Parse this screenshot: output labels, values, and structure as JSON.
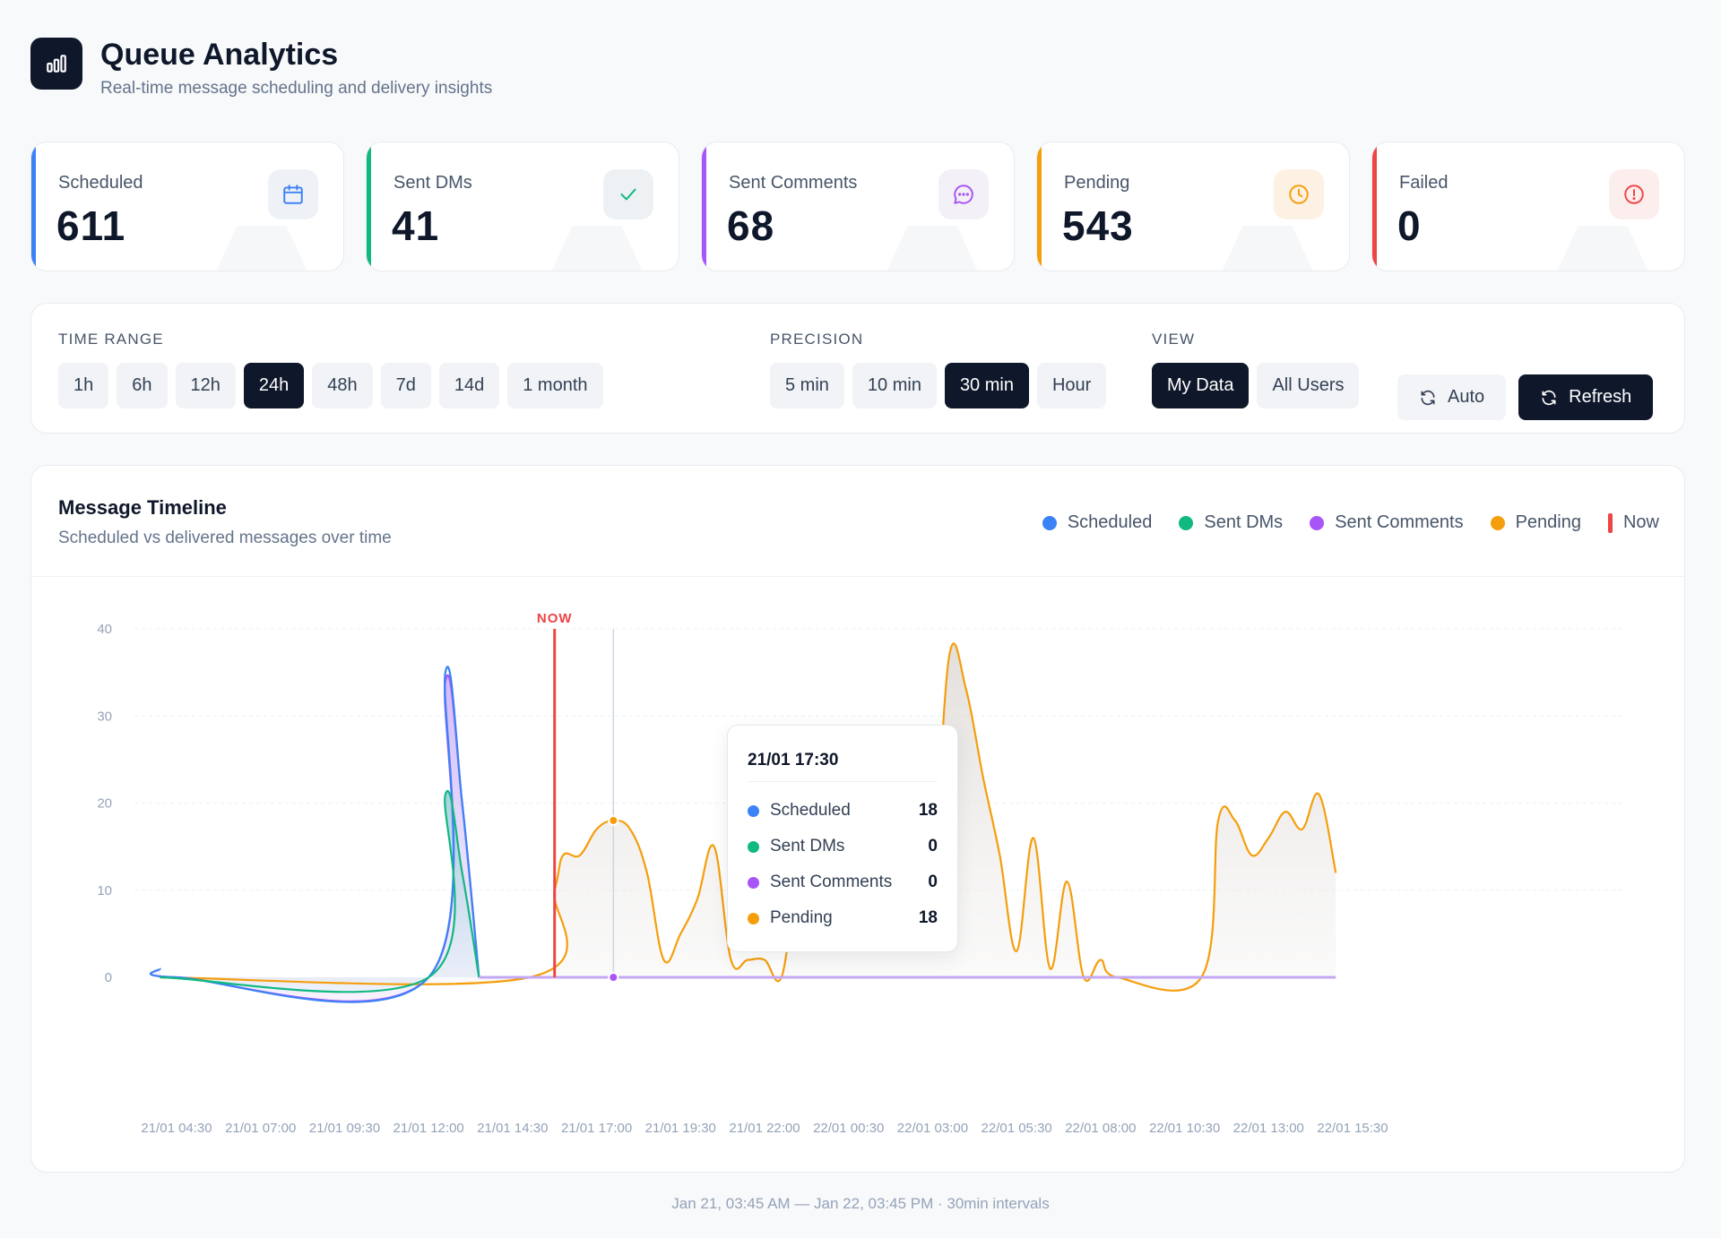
{
  "header": {
    "title": "Queue Analytics",
    "subtitle": "Real-time message scheduling and delivery insights",
    "logo_icon": "bar-chart-icon"
  },
  "stats": [
    {
      "label": "Scheduled",
      "value": "611",
      "color": "#3b82f6",
      "icon": "calendar-icon",
      "icon_bg": "#eef2f7"
    },
    {
      "label": "Sent DMs",
      "value": "41",
      "color": "#10b981",
      "icon": "check-icon",
      "icon_bg": "#eef1f4"
    },
    {
      "label": "Sent Comments",
      "value": "68",
      "color": "#a855f7",
      "icon": "message-icon",
      "icon_bg": "#f3f1f7"
    },
    {
      "label": "Pending",
      "value": "543",
      "color": "#f59e0b",
      "icon": "clock-icon",
      "icon_bg": "#fdf1e4"
    },
    {
      "label": "Failed",
      "value": "0",
      "color": "#ef4444",
      "icon": "alert-icon",
      "icon_bg": "#fdeeee"
    }
  ],
  "filters": {
    "time_range": {
      "label": "TIME RANGE",
      "options": [
        "1h",
        "6h",
        "12h",
        "24h",
        "48h",
        "7d",
        "14d",
        "1 month"
      ],
      "selected": "24h"
    },
    "precision": {
      "label": "PRECISION",
      "options": [
        "5 min",
        "10 min",
        "30 min",
        "Hour"
      ],
      "selected": "30 min"
    },
    "view": {
      "label": "VIEW",
      "options": [
        "My Data",
        "All Users"
      ],
      "selected": "My Data"
    },
    "auto_label": "Auto",
    "refresh_label": "Refresh"
  },
  "chart_card": {
    "title": "Message Timeline",
    "subtitle": "Scheduled vs delivered messages over time",
    "legend": [
      {
        "name": "Scheduled",
        "color": "#3b82f6"
      },
      {
        "name": "Sent DMs",
        "color": "#10b981"
      },
      {
        "name": "Sent Comments",
        "color": "#a855f7"
      },
      {
        "name": "Pending",
        "color": "#f59e0b"
      },
      {
        "name": "Now",
        "color": "#ef4444"
      }
    ],
    "now_marker_label": "NOW"
  },
  "chart_data": {
    "type": "area",
    "x_tick_labels": [
      "21/01 04:30",
      "21/01 07:00",
      "21/01 09:30",
      "21/01 12:00",
      "21/01 14:30",
      "21/01 17:00",
      "21/01 19:30",
      "21/01 22:00",
      "22/01 00:30",
      "22/01 03:00",
      "22/01 05:30",
      "22/01 08:00",
      "22/01 10:30",
      "22/01 13:00",
      "22/01 15:30"
    ],
    "y_ticks": [
      0,
      10,
      20,
      30,
      40
    ],
    "ylim": [
      0,
      40
    ],
    "grid": true,
    "now_time": "21/01 15:45",
    "hover_time": "21/01 17:30",
    "series": [
      {
        "name": "Scheduled",
        "color": "#3b82f6",
        "points": [
          [
            "21/01 04:00",
            1
          ],
          [
            "21/01 04:30",
            0
          ],
          [
            "21/01 12:00",
            0
          ],
          [
            "21/01 12:30",
            35
          ],
          [
            "21/01 13:00",
            20
          ],
          [
            "21/01 13:30",
            0
          ]
        ]
      },
      {
        "name": "Sent DMs",
        "color": "#10b981",
        "points": [
          [
            "21/01 04:00",
            0
          ],
          [
            "21/01 12:00",
            0
          ],
          [
            "21/01 12:30",
            21
          ],
          [
            "21/01 13:00",
            12
          ],
          [
            "21/01 13:30",
            0
          ]
        ]
      },
      {
        "name": "Sent Comments",
        "color": "#a855f7",
        "points": [
          [
            "21/01 04:00",
            1
          ],
          [
            "21/01 04:30",
            0
          ],
          [
            "21/01 12:00",
            0
          ],
          [
            "21/01 12:30",
            34
          ],
          [
            "21/01 13:00",
            20
          ],
          [
            "21/01 13:30",
            0
          ]
        ]
      },
      {
        "name": "Pending",
        "color": "#f59e0b",
        "points": [
          [
            "21/01 04:00",
            0
          ],
          [
            "21/01 15:00",
            0
          ],
          [
            "21/01 15:45",
            10
          ],
          [
            "21/01 16:00",
            14
          ],
          [
            "21/01 16:30",
            14
          ],
          [
            "21/01 17:00",
            17
          ],
          [
            "21/01 17:30",
            18
          ],
          [
            "21/01 18:00",
            17
          ],
          [
            "21/01 18:30",
            12
          ],
          [
            "21/01 19:00",
            2
          ],
          [
            "21/01 19:30",
            5
          ],
          [
            "21/01 20:00",
            9
          ],
          [
            "21/01 20:30",
            15
          ],
          [
            "21/01 21:00",
            2
          ],
          [
            "21/01 21:30",
            2
          ],
          [
            "21/01 22:00",
            2
          ],
          [
            "21/01 22:30",
            0
          ],
          [
            "21/01 23:00",
            11
          ],
          [
            "21/01 23:30",
            7
          ],
          [
            "22/01 00:00",
            11
          ],
          [
            "22/01 00:30",
            23
          ],
          [
            "22/01 01:00",
            6
          ],
          [
            "22/01 01:30",
            10
          ],
          [
            "22/01 02:00",
            10
          ],
          [
            "22/01 02:30",
            10
          ],
          [
            "22/01 03:00",
            12
          ],
          [
            "22/01 03:30",
            37
          ],
          [
            "22/01 04:00",
            33
          ],
          [
            "22/01 04:30",
            23
          ],
          [
            "22/01 05:00",
            14
          ],
          [
            "22/01 05:30",
            3
          ],
          [
            "22/01 06:00",
            16
          ],
          [
            "22/01 06:30",
            1
          ],
          [
            "22/01 07:00",
            11
          ],
          [
            "22/01 07:30",
            0
          ],
          [
            "22/01 08:00",
            2
          ],
          [
            "22/01 08:30",
            0
          ],
          [
            "22/01 11:00",
            0
          ],
          [
            "22/01 11:30",
            18
          ],
          [
            "22/01 12:00",
            18
          ],
          [
            "22/01 12:30",
            14
          ],
          [
            "22/01 13:00",
            16
          ],
          [
            "22/01 13:30",
            19
          ],
          [
            "22/01 14:00",
            17
          ],
          [
            "22/01 14:30",
            21
          ],
          [
            "22/01 15:00",
            12
          ]
        ]
      }
    ]
  },
  "tooltip": {
    "title": "21/01 17:30",
    "rows": [
      {
        "name": "Scheduled",
        "value": "18",
        "color": "#3b82f6"
      },
      {
        "name": "Sent DMs",
        "value": "0",
        "color": "#10b981"
      },
      {
        "name": "Sent Comments",
        "value": "0",
        "color": "#a855f7"
      },
      {
        "name": "Pending",
        "value": "18",
        "color": "#f59e0b"
      }
    ]
  },
  "footer": "Jan 21, 03:45 AM — Jan 22, 03:45 PM · 30min intervals"
}
